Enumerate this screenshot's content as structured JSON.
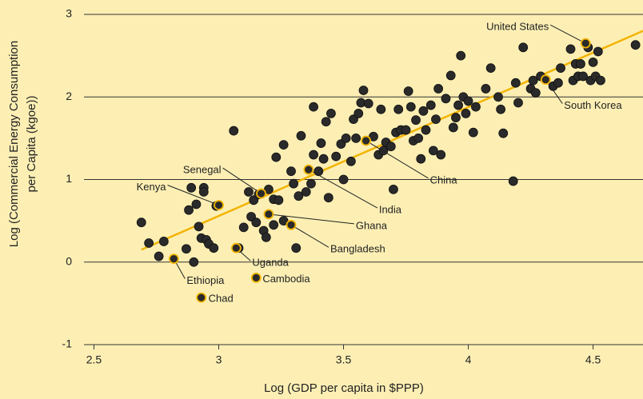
{
  "chart_data": {
    "type": "scatter",
    "x_label": "Log (GDP per capita in $PPP)",
    "y_label": [
      "Log (Commercial Energy Consumption",
      "per Capita (kgoe))"
    ],
    "xlim": [
      2.46,
      4.7
    ],
    "ylim": [
      -1,
      3
    ],
    "xticks": [
      2.5,
      3,
      3.5,
      4,
      4.5
    ],
    "yticks": [
      -1,
      0,
      1,
      2,
      3
    ],
    "grid": true,
    "point_color": "#2a2a2a",
    "highlight_color": "#f2b400",
    "trend_line": {
      "color": "#f2b400",
      "x": [
        2.69,
        4.7
      ],
      "y": [
        0.15,
        2.8
      ]
    },
    "x": [
      2.69,
      2.72,
      2.78,
      2.76,
      2.87,
      2.88,
      2.89,
      2.9,
      2.91,
      2.92,
      2.93,
      2.94,
      2.94,
      2.95,
      2.96,
      2.98,
      2.99,
      3.06,
      3.08,
      3.1,
      3.12,
      3.13,
      3.14,
      3.15,
      3.16,
      3.18,
      3.19,
      3.2,
      3.22,
      3.22,
      3.23,
      3.24,
      3.26,
      3.26,
      3.29,
      3.3,
      3.31,
      3.32,
      3.33,
      3.35,
      3.37,
      3.38,
      3.38,
      3.4,
      3.41,
      3.42,
      3.43,
      3.44,
      3.45,
      3.47,
      3.49,
      3.5,
      3.51,
      3.53,
      3.54,
      3.55,
      3.56,
      3.57,
      3.58,
      3.6,
      3.62,
      3.64,
      3.65,
      3.66,
      3.67,
      3.69,
      3.7,
      3.71,
      3.72,
      3.73,
      3.75,
      3.76,
      3.77,
      3.78,
      3.79,
      3.8,
      3.81,
      3.82,
      3.83,
      3.85,
      3.86,
      3.87,
      3.88,
      3.89,
      3.91,
      3.93,
      3.94,
      3.95,
      3.96,
      3.97,
      3.98,
      3.99,
      4.0,
      4.02,
      4.03,
      4.07,
      4.09,
      4.12,
      4.13,
      4.14,
      4.18,
      4.19,
      4.2,
      4.22,
      4.25,
      4.26,
      4.27,
      4.29,
      4.34,
      4.36,
      4.37,
      4.41,
      4.42,
      4.43,
      4.44,
      4.45,
      4.46,
      4.48,
      4.49,
      4.5,
      4.51,
      4.52,
      4.53,
      4.67
    ],
    "y": [
      0.48,
      0.23,
      0.25,
      0.07,
      0.16,
      0.63,
      0.9,
      0.0,
      0.7,
      0.43,
      0.29,
      0.9,
      0.85,
      0.27,
      0.22,
      0.17,
      0.68,
      1.59,
      0.17,
      0.42,
      0.85,
      0.55,
      0.75,
      0.48,
      0.82,
      0.38,
      0.3,
      0.88,
      0.45,
      0.76,
      1.27,
      0.75,
      1.42,
      0.5,
      1.1,
      0.95,
      0.17,
      0.8,
      1.53,
      0.85,
      0.95,
      1.88,
      1.3,
      1.1,
      1.44,
      1.25,
      1.7,
      0.78,
      1.8,
      1.28,
      1.43,
      1.0,
      1.5,
      1.22,
      1.73,
      1.5,
      1.8,
      1.93,
      2.08,
      1.92,
      1.52,
      1.3,
      1.85,
      1.35,
      1.45,
      1.4,
      0.88,
      1.57,
      1.85,
      1.6,
      1.6,
      2.07,
      1.88,
      1.47,
      1.72,
      1.5,
      1.25,
      1.83,
      1.6,
      1.9,
      1.35,
      1.73,
      2.1,
      1.3,
      1.98,
      2.26,
      1.63,
      1.75,
      1.9,
      2.5,
      2.0,
      1.8,
      1.95,
      1.57,
      1.88,
      2.1,
      2.35,
      2.0,
      1.85,
      1.56,
      0.98,
      2.17,
      1.93,
      2.6,
      2.1,
      2.2,
      2.05,
      2.25,
      2.13,
      2.17,
      2.35,
      2.58,
      2.2,
      2.4,
      2.25,
      2.4,
      2.25,
      2.6,
      2.2,
      2.42,
      2.25,
      2.55,
      2.2,
      2.63
    ],
    "annotations": [
      {
        "text": "United States",
        "x": 4.47,
        "y": 2.65
      },
      {
        "text": "South Korea",
        "x": 4.31,
        "y": 2.21
      },
      {
        "text": "China",
        "x": 3.59,
        "y": 1.47
      },
      {
        "text": "India",
        "x": 3.36,
        "y": 1.12
      },
      {
        "text": "Ghana",
        "x": 3.2,
        "y": 0.58
      },
      {
        "text": "Bangladesh",
        "x": 3.29,
        "y": 0.45
      },
      {
        "text": "Senegal",
        "x": 3.17,
        "y": 0.83
      },
      {
        "text": "Kenya",
        "x": 3.0,
        "y": 0.69
      },
      {
        "text": "Uganda",
        "x": 3.07,
        "y": 0.17
      },
      {
        "text": "Ethiopia",
        "x": 2.82,
        "y": 0.04
      },
      {
        "text": "Cambodia",
        "x": 3.15,
        "y": -0.19
      },
      {
        "text": "Chad",
        "x": 2.93,
        "y": -0.43
      }
    ]
  }
}
